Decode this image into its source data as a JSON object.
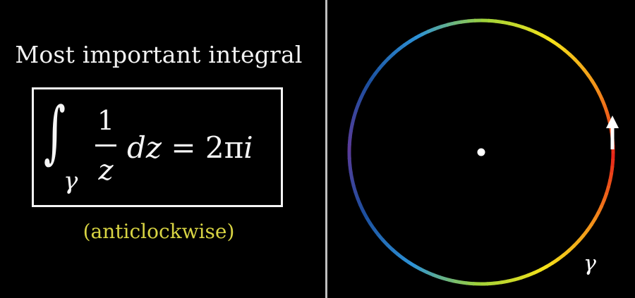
{
  "left": {
    "title": "Most important integral",
    "formula": {
      "integral_sign": "∫",
      "contour_symbol": "γ",
      "numerator": "1",
      "denominator": "z",
      "rhs_dz": "dz",
      "rhs_equals": " = ",
      "rhs_value": "2π",
      "rhs_i": "i"
    },
    "direction_note": "(anticlockwise)"
  },
  "right": {
    "contour_label": "γ",
    "colors": {
      "ring": [
        "#e8261a",
        "#f28d1a",
        "#f5e21a",
        "#9fd23a",
        "#2d92d6",
        "#1c4f9e",
        "#5a3b98"
      ],
      "arrow": "#ffffff",
      "center_point": "#ffffff",
      "divider": "#bfbfbf",
      "note_color": "#d8d443"
    }
  }
}
